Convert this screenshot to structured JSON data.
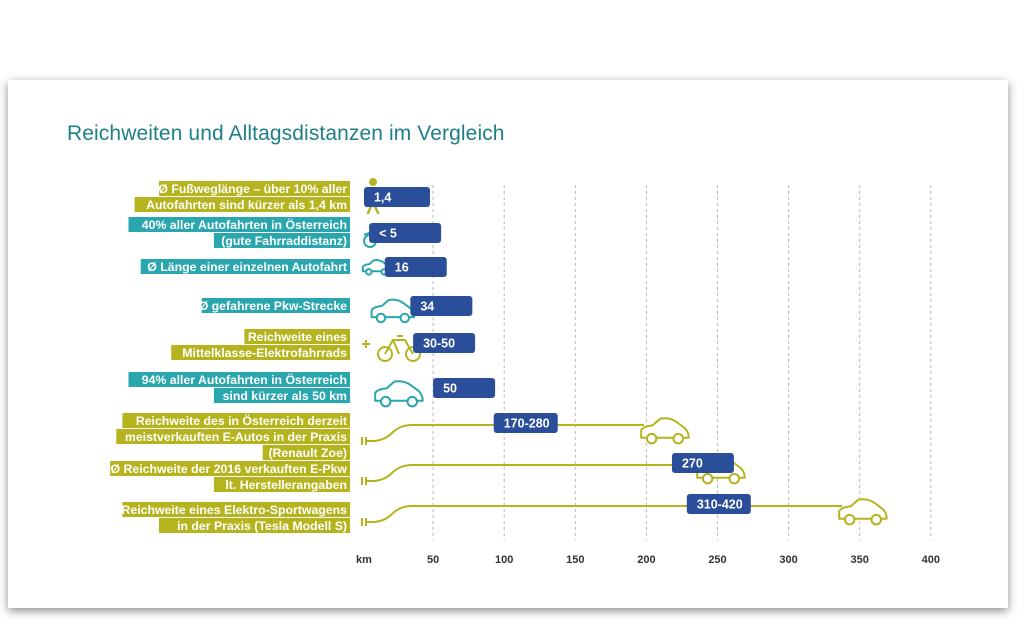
{
  "chart_data": {
    "type": "bar",
    "title": "Reichweiten und Alltagsdistanzen im Vergleich",
    "xlabel": "km",
    "xlim": [
      0,
      400
    ],
    "x_ticks": [
      "50",
      "100",
      "150",
      "200",
      "250",
      "300",
      "350",
      "400"
    ],
    "grid": "vertical dashed",
    "categories": [
      [
        "Ø Fußweglänge – über 10% aller",
        "Autofahrten sind kürzer als 1,4 km"
      ],
      [
        "40% aller Autofahrten in Österreich",
        "(gute Fahrraddistanz)"
      ],
      [
        "Ø Länge einer einzelnen Autofahrt"
      ],
      [
        "Ø gefahrene Pkw-Strecke"
      ],
      [
        "Reichweite eines",
        "Mittelklasse-Elektrofahrrads"
      ],
      [
        "94% aller Autofahrten in Österreich",
        "sind kürzer als 50 km"
      ],
      [
        "Reichweite des in Österreich derzeit",
        "meistverkauften E-Autos in der Praxis",
        "(Renault Zoe)"
      ],
      [
        "Ø Reichweite der 2016 verkauften E-Pkw",
        "lt. Herstellerangaben"
      ],
      [
        "Reichweite eines Elektro-Sportwagens",
        "in der Praxis (Tesla Modell S)"
      ]
    ],
    "value_labels": [
      "1,4",
      "< 5",
      "16",
      "34",
      "30-50",
      "50",
      "170-280",
      "270",
      "310-420"
    ],
    "values": [
      1.4,
      5,
      16,
      34,
      50,
      50,
      280,
      270,
      420
    ],
    "icons": [
      "pedestrian-icon",
      "bicycle-icon",
      "car-icon",
      "car-icon",
      "e-bike-icon",
      "car-icon",
      "e-car-icon",
      "e-car-icon",
      "e-car-icon"
    ],
    "label_colors": [
      "#b5b41e",
      "#2aa6ae",
      "#2aa6ae",
      "#2aa6ae",
      "#b5b41e",
      "#2aa6ae",
      "#b5b41e",
      "#b5b41e",
      "#b5b41e"
    ],
    "colors": {
      "olive": "#b5b41e",
      "teal": "#2aa6ae",
      "badge": "#2a4e9a",
      "title": "#1f7f86"
    }
  }
}
